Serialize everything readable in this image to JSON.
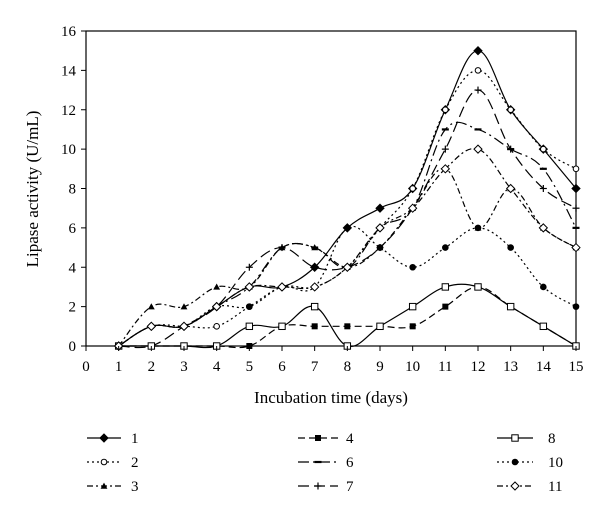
{
  "chart_data": {
    "type": "line",
    "xlabel": "Incubation time (days)",
    "ylabel": "Lipase activity (U/mL)",
    "xlim": [
      0,
      15
    ],
    "ylim": [
      0,
      16
    ],
    "x_ticks": [
      "0",
      "1",
      "2",
      "3",
      "4",
      "5",
      "6",
      "7",
      "8",
      "9",
      "10",
      "11",
      "12",
      "13",
      "14",
      "15"
    ],
    "y_ticks": [
      "0",
      "2",
      "4",
      "6",
      "8",
      "10",
      "12",
      "14",
      "16"
    ],
    "grid": false,
    "legend_position": "bottom",
    "x": [
      1,
      2,
      3,
      4,
      5,
      6,
      7,
      8,
      9,
      10,
      11,
      12,
      13,
      14,
      15
    ],
    "series": [
      {
        "name": "1",
        "color": "#000000",
        "line": "solid",
        "marker": "filled-diamond",
        "values": [
          0,
          1,
          1,
          2,
          3,
          3,
          4,
          6,
          7,
          8,
          12,
          15,
          12,
          10,
          8
        ]
      },
      {
        "name": "2",
        "color": "#000000",
        "line": "dotted",
        "marker": "open-circle",
        "values": [
          0,
          1,
          1,
          1,
          2,
          3,
          3,
          4,
          6,
          8,
          12,
          14,
          12,
          10,
          9
        ]
      },
      {
        "name": "3",
        "color": "#000000",
        "line": "dot-dash",
        "marker": "filled-triangle",
        "values": [
          0,
          2,
          2,
          3,
          3,
          5,
          5,
          4,
          5,
          7,
          9,
          6,
          8,
          6,
          5
        ]
      },
      {
        "name": "4",
        "color": "#000000",
        "line": "dashed",
        "marker": "filled-square",
        "values": [
          0,
          0,
          0,
          0,
          0,
          1,
          1,
          1,
          1,
          1,
          2,
          3,
          2,
          1,
          0
        ]
      },
      {
        "name": "6",
        "color": "#000000",
        "line": "long-dash-dot",
        "marker": "dash",
        "values": [
          0,
          1,
          1,
          2,
          3,
          5,
          5,
          4,
          6,
          7,
          11,
          11,
          10,
          9,
          6
        ]
      },
      {
        "name": "7",
        "color": "#000000",
        "line": "long-dash",
        "marker": "plus",
        "values": [
          0,
          0,
          1,
          2,
          4,
          5,
          4,
          4,
          5,
          7,
          10,
          13,
          10,
          8,
          7
        ]
      },
      {
        "name": "8",
        "color": "#000000",
        "line": "solid",
        "marker": "open-square",
        "values": [
          0,
          0,
          0,
          0,
          1,
          1,
          2,
          0,
          1,
          2,
          3,
          3,
          2,
          1,
          0
        ]
      },
      {
        "name": "10",
        "color": "#000000",
        "line": "dotted",
        "marker": "filled-circle",
        "values": [
          0,
          1,
          1,
          2,
          2,
          3,
          3,
          6,
          5,
          4,
          5,
          6,
          5,
          3,
          2
        ]
      },
      {
        "name": "11",
        "color": "#000000",
        "line": "dot-dash",
        "marker": "open-diamond",
        "values": [
          0,
          1,
          1,
          2,
          3,
          3,
          3,
          4,
          6,
          7,
          9,
          10,
          8,
          6,
          5
        ]
      }
    ]
  }
}
